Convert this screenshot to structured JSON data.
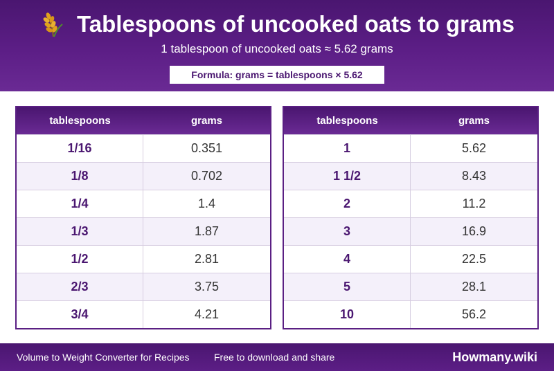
{
  "header": {
    "title": "Tablespoons of uncooked oats to grams",
    "subtitle": "1 tablespoon of uncooked oats ≈ 5.62 grams",
    "formula": "Formula: grams = tablespoons × 5.62",
    "icon": "wheat-icon"
  },
  "tables": [
    {
      "headers": [
        "tablespoons",
        "grams"
      ],
      "rows": [
        [
          "1/16",
          "0.351"
        ],
        [
          "1/8",
          "0.702"
        ],
        [
          "1/4",
          "1.4"
        ],
        [
          "1/3",
          "1.87"
        ],
        [
          "1/2",
          "2.81"
        ],
        [
          "2/3",
          "3.75"
        ],
        [
          "3/4",
          "4.21"
        ]
      ]
    },
    {
      "headers": [
        "tablespoons",
        "grams"
      ],
      "rows": [
        [
          "1",
          "5.62"
        ],
        [
          "1 1/2",
          "8.43"
        ],
        [
          "2",
          "11.2"
        ],
        [
          "3",
          "16.9"
        ],
        [
          "4",
          "22.5"
        ],
        [
          "5",
          "28.1"
        ],
        [
          "10",
          "56.2"
        ]
      ]
    }
  ],
  "footer": {
    "left": "Volume to Weight Converter for Recipes",
    "middle": "Free to download and share",
    "brand": "Howmany.wiki"
  },
  "colors": {
    "primary": "#4a1670",
    "primary_light": "#6a2a94",
    "row_alt": "#f4f0fa",
    "wheat": "#e0a21c"
  }
}
